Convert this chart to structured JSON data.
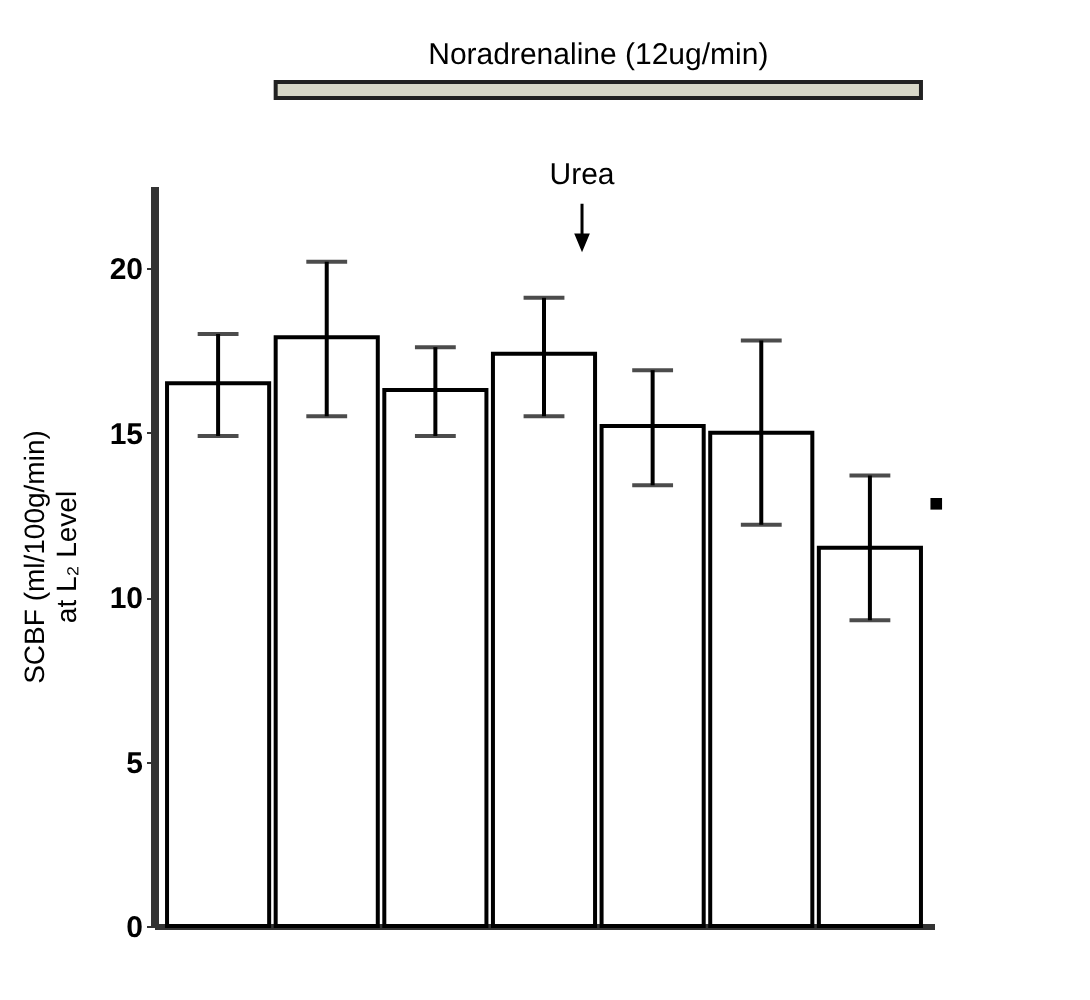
{
  "chart_data": {
    "type": "bar",
    "ylabel": "SCBF (ml/100g/min)\nat L₂ Level",
    "categories": [
      null,
      null,
      null,
      null,
      null,
      null,
      null
    ],
    "values": [
      16.5,
      17.9,
      16.3,
      17.4,
      15.2,
      15.0,
      11.5
    ],
    "errors": [
      [
        14.9,
        18.0
      ],
      [
        15.5,
        20.2
      ],
      [
        14.9,
        17.6
      ],
      [
        15.5,
        19.1
      ],
      [
        13.4,
        16.9
      ],
      [
        12.2,
        17.8
      ],
      [
        9.3,
        13.7
      ]
    ],
    "color": "#ffffff",
    "ylim": [
      0,
      22.5
    ],
    "yticks": [
      0,
      5,
      10,
      15,
      20
    ],
    "tick_labels": "y",
    "annotations": [
      "Noradrenaline (12ug/min)",
      "Urea",
      "■"
    ]
  }
}
